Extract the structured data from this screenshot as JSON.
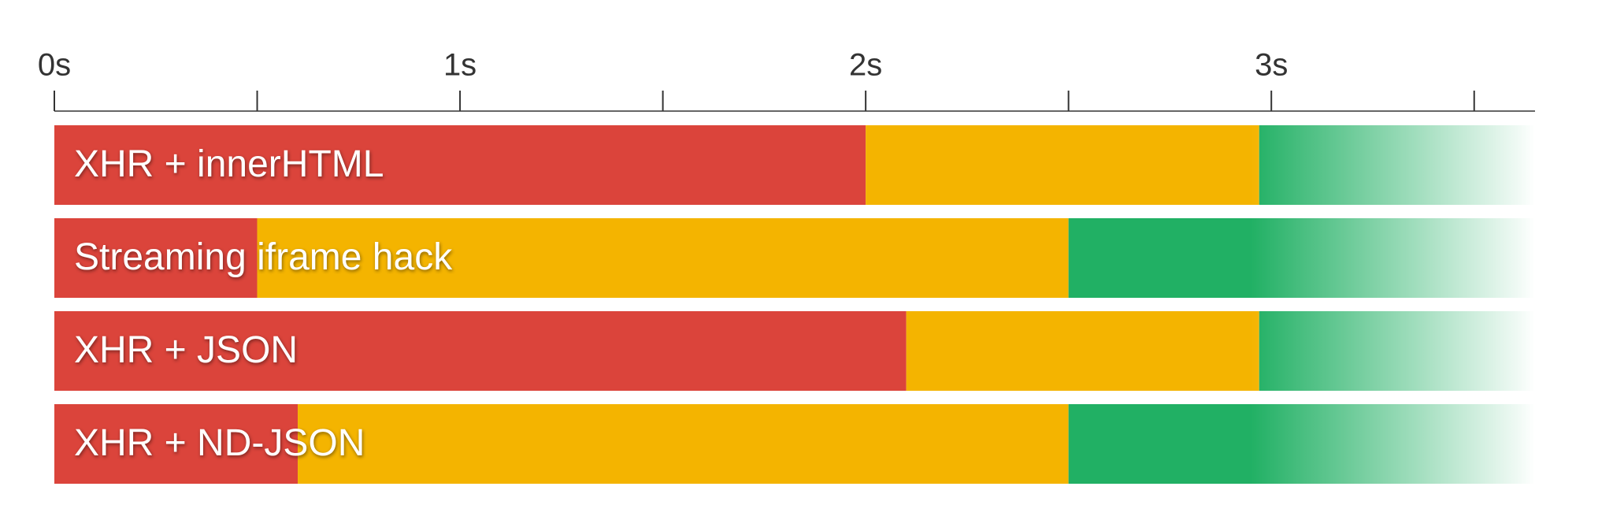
{
  "chart_data": {
    "type": "timeline",
    "categories": [
      "XHR + innerHTML",
      "Streaming iframe hack",
      "XHR + JSON",
      "XHR + ND-JSON"
    ],
    "series": [
      {
        "color": "#db443b",
        "values": [
          2.0,
          0.5,
          2.1,
          0.6
        ]
      },
      {
        "color": "#f4b400",
        "values": [
          0.97,
          2.0,
          0.87,
          1.9
        ]
      },
      {
        "color": "#21b064",
        "values": [
          0.68,
          1.15,
          0.68,
          1.15
        ]
      }
    ],
    "xlim": [
      0,
      3.65
    ],
    "xticks": [
      {
        "value": 0,
        "label": "0s"
      },
      {
        "value": 1,
        "label": "1s"
      },
      {
        "value": 2,
        "label": "2s"
      },
      {
        "value": 3,
        "label": "3s"
      }
    ],
    "minor_xticks": [
      0.5,
      1.5,
      2.5,
      3.5
    ],
    "fade_start": 2.95
  }
}
